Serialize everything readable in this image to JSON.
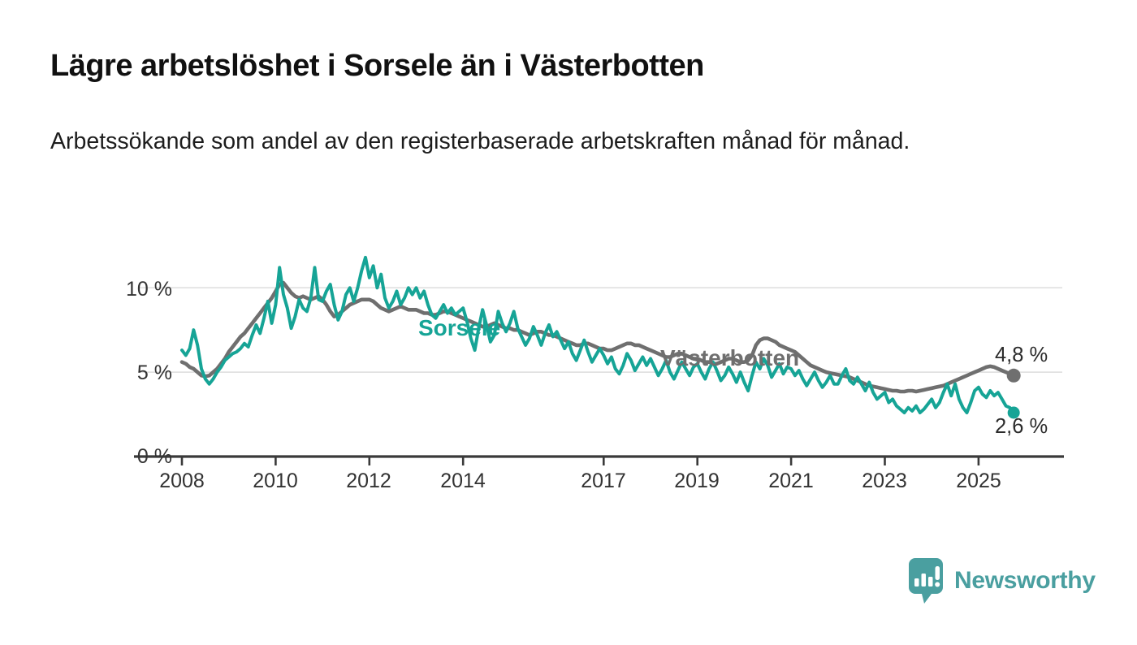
{
  "header": {
    "title": "Lägre arbetslöshet i Sorsele än i Västerbotten",
    "subtitle": "Arbetssökande som andel av den registerbaserade arbetskraften månad för månad."
  },
  "footer": {
    "brand": "Newsworthy",
    "brand_color": "#4a9fa0",
    "logo_icon": "bar-chart-speech-bubble"
  },
  "chart_data": {
    "type": "line",
    "title": "Lägre arbetslöshet i Sorsele än i Västerbotten",
    "subtitle": "Arbetssökande som andel av den registerbaserade arbetskraften månad för månad.",
    "unit": "%",
    "frequency": "monthly",
    "x_start": "2008-01",
    "x_end": "2025-10",
    "ylim": [
      0,
      12
    ],
    "grid": "horizontal",
    "legend_position": "inline-labels-on-lines",
    "y_tick_labels": [
      "0 %",
      "5 %",
      "10 %"
    ],
    "x_tick_years": [
      2008,
      2010,
      2012,
      2014,
      2017,
      2019,
      2021,
      2023,
      2025
    ],
    "x_tick_labels": [
      "2008",
      "2010",
      "2012",
      "2014",
      "2017",
      "2019",
      "2021",
      "2023",
      "2025"
    ],
    "end_labels": {
      "vasterbotten": "4,8 %",
      "sorsele": "2,6 %"
    },
    "axis_color": "#3a3a3a",
    "gridline_color": "#dcdcdc",
    "series": [
      {
        "name": "Sorsele",
        "color": "#16a496",
        "last_value": 2.6,
        "values": [
          6.3,
          6.0,
          6.4,
          7.5,
          6.6,
          5.2,
          4.6,
          4.3,
          4.6,
          5.0,
          5.3,
          5.7,
          5.9,
          6.1,
          6.2,
          6.4,
          6.7,
          6.5,
          7.2,
          7.8,
          7.3,
          8.2,
          9.2,
          7.9,
          9.0,
          11.2,
          9.6,
          8.8,
          7.6,
          8.3,
          9.3,
          8.8,
          8.6,
          9.4,
          11.2,
          9.3,
          9.2,
          9.8,
          10.2,
          9.0,
          8.1,
          8.6,
          9.6,
          10.0,
          9.2,
          10.0,
          11.0,
          11.8,
          10.6,
          11.3,
          10.0,
          10.8,
          9.4,
          8.8,
          9.2,
          9.8,
          9.0,
          9.4,
          10.0,
          9.6,
          10.0,
          9.4,
          9.8,
          9.0,
          8.4,
          8.2,
          8.6,
          9.0,
          8.5,
          8.8,
          8.4,
          8.6,
          8.8,
          8.0,
          7.0,
          6.3,
          7.6,
          8.7,
          7.8,
          6.8,
          7.2,
          8.6,
          7.9,
          7.4,
          7.9,
          8.6,
          7.6,
          7.1,
          6.6,
          7.0,
          7.7,
          7.2,
          6.6,
          7.3,
          7.8,
          7.1,
          7.4,
          6.9,
          6.4,
          6.8,
          6.1,
          5.7,
          6.3,
          6.9,
          6.2,
          5.6,
          6.0,
          6.4,
          6.0,
          5.5,
          5.9,
          5.2,
          4.9,
          5.4,
          6.1,
          5.7,
          5.1,
          5.5,
          5.9,
          5.4,
          5.8,
          5.3,
          4.8,
          5.2,
          5.7,
          5.0,
          4.6,
          5.1,
          5.6,
          5.2,
          4.8,
          5.3,
          5.5,
          5.0,
          4.6,
          5.2,
          5.6,
          5.1,
          4.5,
          4.8,
          5.3,
          4.9,
          4.4,
          5.0,
          4.4,
          3.9,
          4.8,
          5.6,
          5.2,
          5.8,
          5.4,
          4.7,
          5.1,
          5.5,
          4.9,
          5.3,
          5.2,
          4.8,
          5.1,
          4.6,
          4.2,
          4.6,
          5.0,
          4.5,
          4.1,
          4.4,
          4.8,
          4.3,
          4.3,
          4.8,
          5.2,
          4.5,
          4.3,
          4.7,
          4.3,
          3.9,
          4.4,
          3.8,
          3.4,
          3.6,
          3.8,
          3.2,
          3.4,
          3.0,
          2.8,
          2.6,
          2.9,
          2.7,
          3.0,
          2.6,
          2.8,
          3.1,
          3.4,
          2.9,
          3.2,
          3.8,
          4.3,
          3.6,
          4.3,
          3.4,
          2.9,
          2.6,
          3.2,
          3.9,
          4.1,
          3.7,
          3.5,
          3.9,
          3.6,
          3.8,
          3.4,
          3.0,
          2.9,
          2.6
        ]
      },
      {
        "name": "Västerbotten",
        "color": "#6f6f6f",
        "last_value": 4.8,
        "values": [
          5.6,
          5.5,
          5.3,
          5.2,
          5.0,
          4.8,
          4.75,
          4.8,
          5.0,
          5.2,
          5.5,
          5.8,
          6.2,
          6.5,
          6.8,
          7.1,
          7.3,
          7.6,
          7.9,
          8.2,
          8.5,
          8.8,
          9.1,
          9.4,
          9.8,
          10.2,
          10.3,
          10.0,
          9.7,
          9.5,
          9.4,
          9.5,
          9.4,
          9.3,
          9.4,
          9.5,
          9.3,
          9.0,
          8.6,
          8.3,
          8.4,
          8.6,
          8.8,
          9.0,
          9.1,
          9.2,
          9.3,
          9.3,
          9.3,
          9.2,
          9.0,
          8.8,
          8.7,
          8.6,
          8.7,
          8.8,
          8.9,
          8.8,
          8.7,
          8.7,
          8.7,
          8.6,
          8.5,
          8.5,
          8.4,
          8.4,
          8.5,
          8.6,
          8.6,
          8.5,
          8.4,
          8.3,
          8.2,
          8.1,
          8.0,
          7.9,
          7.8,
          7.7,
          7.7,
          7.8,
          7.9,
          7.8,
          7.7,
          7.6,
          7.6,
          7.5,
          7.5,
          7.4,
          7.3,
          7.2,
          7.3,
          7.4,
          7.4,
          7.3,
          7.2,
          7.2,
          7.1,
          7.0,
          6.9,
          6.8,
          6.7,
          6.6,
          6.6,
          6.7,
          6.7,
          6.6,
          6.5,
          6.4,
          6.4,
          6.3,
          6.3,
          6.4,
          6.5,
          6.6,
          6.7,
          6.7,
          6.6,
          6.6,
          6.5,
          6.4,
          6.3,
          6.2,
          6.1,
          6.0,
          5.9,
          5.9,
          6.0,
          6.1,
          6.1,
          6.0,
          5.9,
          5.8,
          5.8,
          5.7,
          5.6,
          5.6,
          5.5,
          5.5,
          5.6,
          5.7,
          5.8,
          5.8,
          5.7,
          5.6,
          5.6,
          5.7,
          6.0,
          6.6,
          6.9,
          7.0,
          7.0,
          6.9,
          6.8,
          6.6,
          6.5,
          6.4,
          6.3,
          6.2,
          6.0,
          5.8,
          5.6,
          5.4,
          5.3,
          5.2,
          5.1,
          5.0,
          4.95,
          4.9,
          4.85,
          4.8,
          4.75,
          4.7,
          4.6,
          4.5,
          4.4,
          4.3,
          4.2,
          4.15,
          4.1,
          4.05,
          4.0,
          3.95,
          3.9,
          3.9,
          3.85,
          3.85,
          3.9,
          3.9,
          3.85,
          3.9,
          3.95,
          4.0,
          4.05,
          4.1,
          4.15,
          4.2,
          4.3,
          4.4,
          4.5,
          4.6,
          4.7,
          4.8,
          4.9,
          5.0,
          5.1,
          5.2,
          5.3,
          5.35,
          5.3,
          5.2,
          5.1,
          5.0,
          4.9,
          4.8
        ]
      }
    ]
  }
}
